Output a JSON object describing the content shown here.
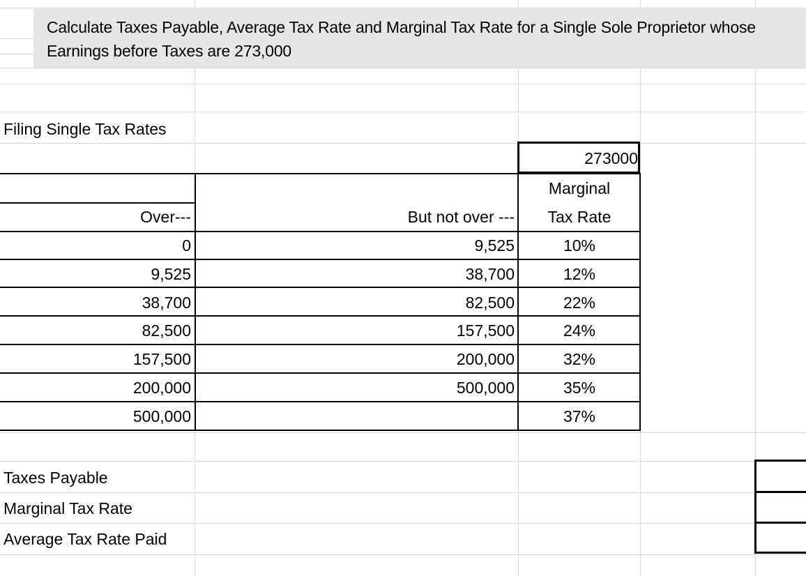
{
  "problem": {
    "text": "Calculate Taxes Payable, Average Tax Rate and Marginal Tax Rate for a Single Sole Proprietor whose Earnings before Taxes are 273,000"
  },
  "section_title": "Filing Single Tax Rates",
  "earnings_input": "273000",
  "table": {
    "header_over": "Over---",
    "header_not_over": "But not over ---",
    "header_rate_line1": "Marginal",
    "header_rate_line2": "Tax Rate",
    "rows": [
      {
        "over": "0",
        "not_over": "9,525",
        "rate": "10%"
      },
      {
        "over": "9,525",
        "not_over": "38,700",
        "rate": "12%"
      },
      {
        "over": "38,700",
        "not_over": "82,500",
        "rate": "22%"
      },
      {
        "over": "82,500",
        "not_over": "157,500",
        "rate": "24%"
      },
      {
        "over": "157,500",
        "not_over": "200,000",
        "rate": "32%"
      },
      {
        "over": "200,000",
        "not_over": "500,000",
        "rate": "35%"
      },
      {
        "over": "500,000",
        "not_over": "",
        "rate": "37%"
      }
    ]
  },
  "results": {
    "taxes_payable": "Taxes Payable",
    "marginal_tax_rate": "Marginal Tax Rate",
    "average_tax_rate": "Average Tax Rate Paid"
  }
}
